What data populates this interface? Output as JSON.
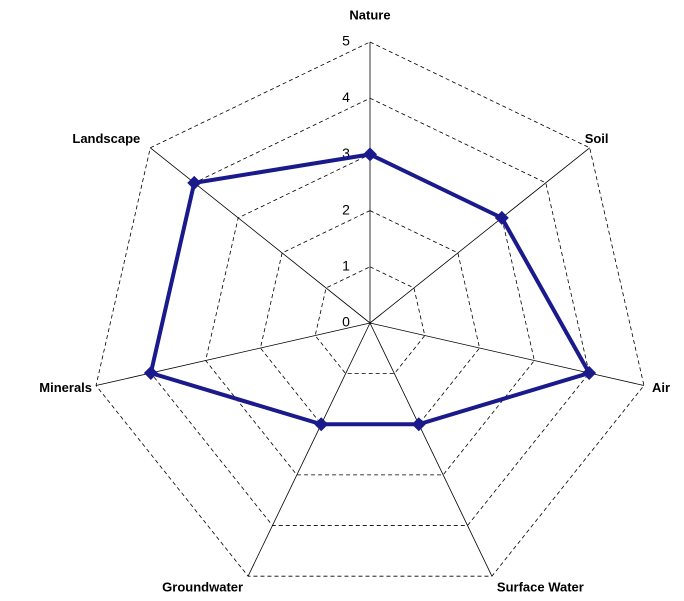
{
  "chart_data": {
    "type": "radar",
    "categories": [
      "Nature",
      "Soil",
      "Air",
      "Surface Water",
      "Groundwater",
      "Minerals",
      "Landscape"
    ],
    "values": [
      3,
      3,
      4,
      2,
      2,
      4,
      4
    ],
    "color": "#1a1a8c",
    "ylim": [
      0,
      5
    ],
    "yticks": [
      0,
      1,
      2,
      3,
      4,
      5
    ],
    "grid": true
  }
}
